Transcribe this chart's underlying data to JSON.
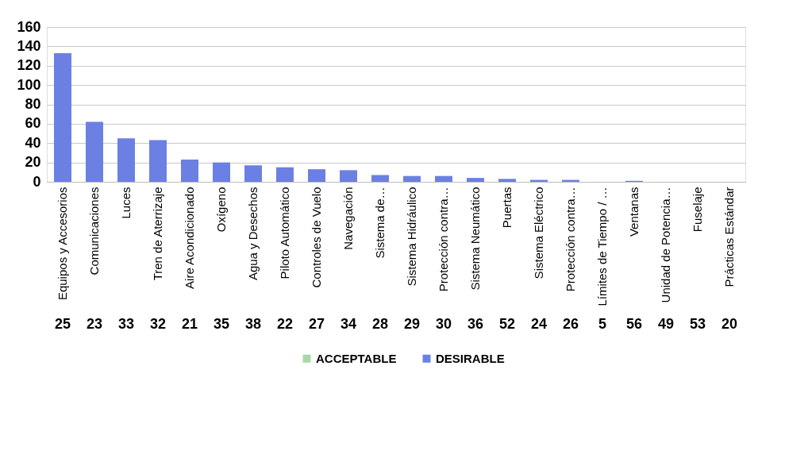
{
  "chart_data": {
    "type": "bar",
    "categories": [
      "Equipos y Accesorios",
      "Comunicaciones",
      "Luces",
      "Tren de Aterrizaje",
      "Aire Acondicionado",
      "Oxígeno",
      "Agua y Desechos",
      "Piloto Automático",
      "Controles de Vuelo",
      "Navegación",
      "Sistema de…",
      "Sistema Hidráulico",
      "Protección contra…",
      "Sistema Neumático",
      "Puertas",
      "Sistema Eléctrico",
      "Protección contra…",
      "Límites de Tiempo / …",
      "Ventanas",
      "Unidad de Potencia…",
      "Fuselaje",
      "Prácticas Estándar"
    ],
    "series": [
      {
        "name": "ACCEPTABLE",
        "color": "#a8d8a8",
        "values": [
          null,
          null,
          null,
          null,
          null,
          null,
          null,
          null,
          null,
          null,
          null,
          null,
          null,
          null,
          null,
          null,
          null,
          null,
          null,
          null,
          null,
          null
        ]
      },
      {
        "name": "DESIRABLE",
        "color": "#6b80e2",
        "values": [
          133,
          62,
          45,
          43,
          23,
          20,
          17,
          15,
          13,
          12,
          7,
          6,
          6,
          4,
          3,
          2,
          2,
          0,
          1,
          0,
          0,
          0
        ]
      }
    ],
    "ylim": [
      0,
      160
    ],
    "yticks": [
      0,
      20,
      40,
      60,
      80,
      100,
      120,
      140,
      160
    ],
    "grid": "y",
    "legend": "bottom",
    "annotations": [
      "25",
      "23",
      "33",
      "32",
      "21",
      "35",
      "38",
      "22",
      "27",
      "34",
      "28",
      "29",
      "30",
      "36",
      "52",
      "24",
      "26",
      "5",
      "56",
      "49",
      "53",
      "20"
    ]
  }
}
